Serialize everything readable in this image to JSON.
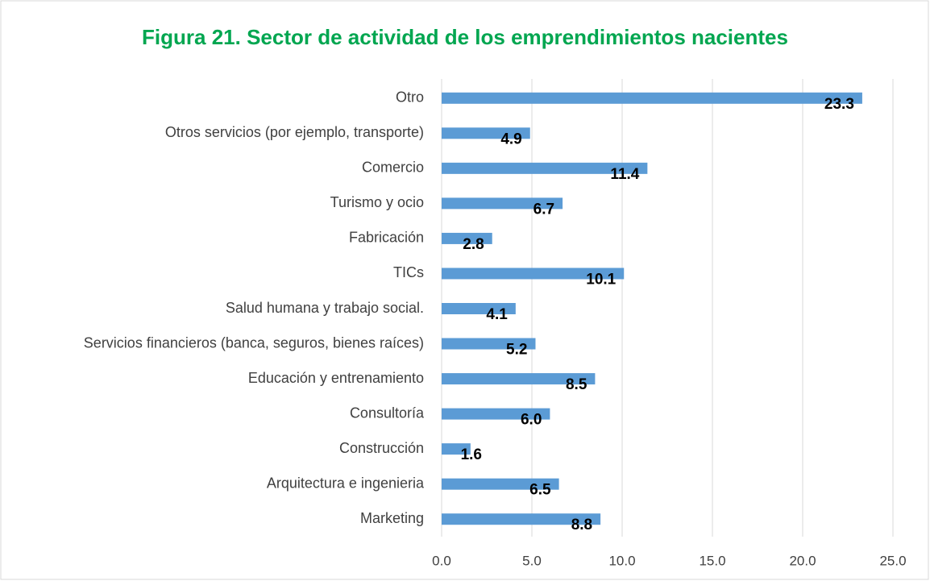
{
  "chart_data": {
    "type": "hbar",
    "title": "Figura 21. Sector de actividad de los emprendimientos nacientes",
    "categories": [
      "Otro",
      "Otros servicios (por ejemplo, transporte)",
      "Comercio ",
      "Turismo y ocio",
      "Fabricación",
      "TICs",
      "Salud humana y trabajo social.",
      "Servicios financieros (banca, seguros, bienes raíces)",
      "Educación y entrenamiento",
      "Consultoría ",
      "Construcción",
      "Arquitectura e ingenieria",
      "Marketing"
    ],
    "values": [
      23.3,
      4.9,
      11.4,
      6.7,
      2.8,
      10.1,
      4.1,
      5.2,
      8.5,
      6.0,
      1.6,
      6.5,
      8.8
    ],
    "value_labels": [
      "23.3",
      "4.9",
      "11.4",
      "6.7",
      "2.8",
      "10.1",
      "4.1",
      "5.2",
      "8.5",
      "6.0",
      "1.6",
      "6.5",
      "8.8"
    ],
    "color": "#5b9bd5",
    "xlim": [
      0,
      25
    ],
    "xticks": [
      {
        "value": 0,
        "label": "0.0"
      },
      {
        "value": 5,
        "label": "5.0"
      },
      {
        "value": 10,
        "label": "10.0"
      },
      {
        "value": 15,
        "label": "15.0"
      },
      {
        "value": 20,
        "label": "20.0"
      },
      {
        "value": 25,
        "label": "25.0"
      }
    ],
    "grid": true
  }
}
